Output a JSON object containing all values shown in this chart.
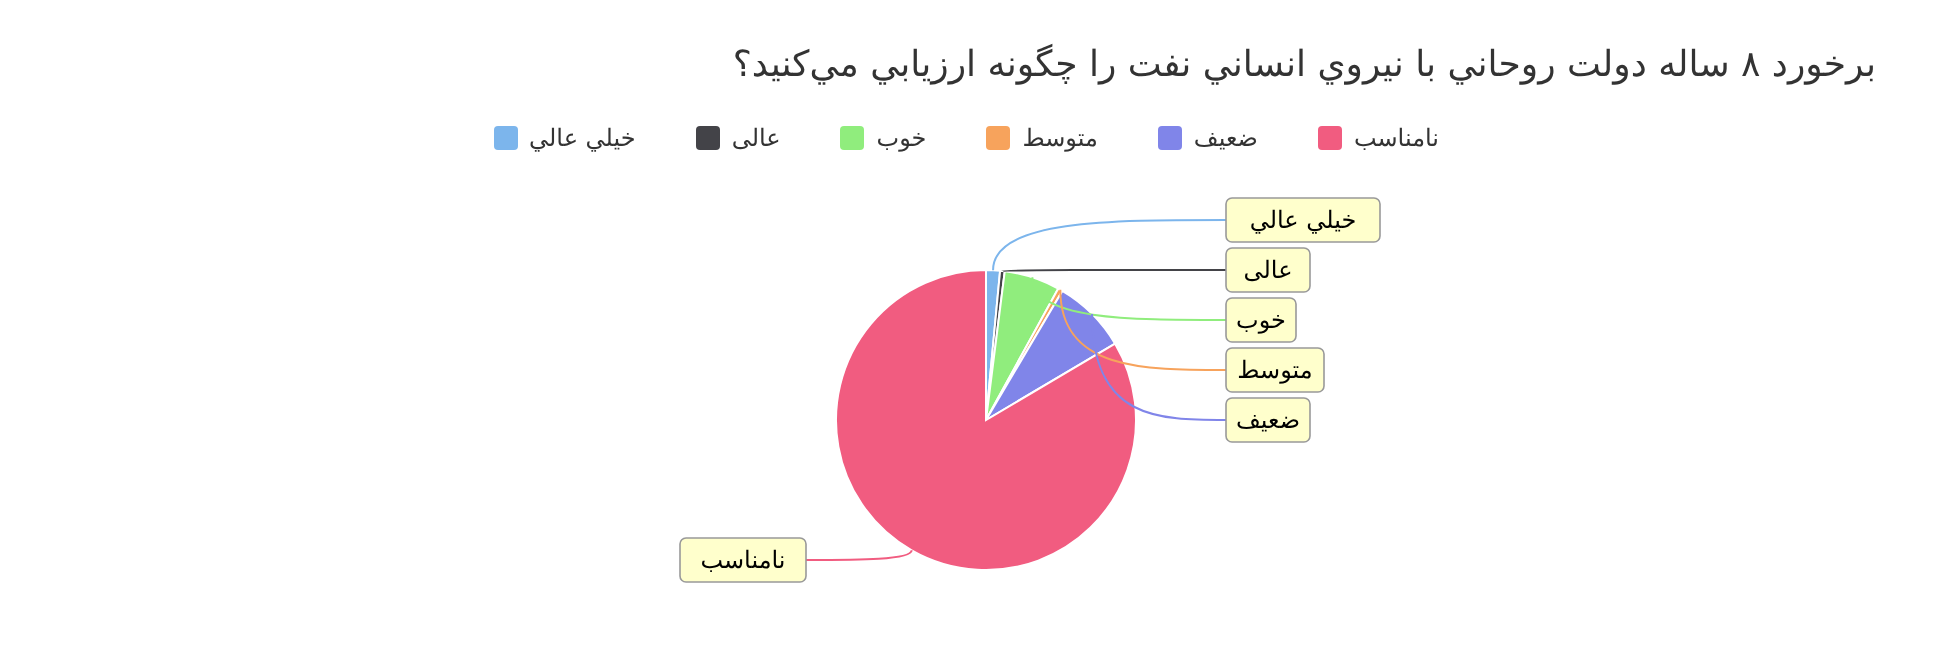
{
  "chart_data": {
    "type": "pie",
    "title": "برخورد ۸ ساله دولت روحاني با نيروي انساني نفت را چگونه ارزيابي مي‌کنيد؟",
    "categories": [
      "خيلي عالي",
      "عالی",
      "خوب",
      "متوسط",
      "ضعيف",
      "نامناسب"
    ],
    "values": [
      1.5,
      0.5,
      6,
      0.5,
      8,
      83.5
    ],
    "colors": [
      "#7cb5ec",
      "#434348",
      "#90ed7d",
      "#f7a35c",
      "#8085e9",
      "#f15c80"
    ],
    "legend": "top"
  }
}
